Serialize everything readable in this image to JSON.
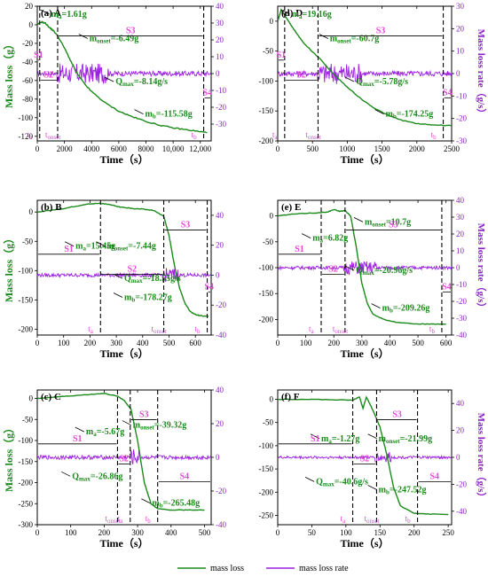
{
  "chart_data": [
    {
      "panel": "(a) A",
      "type": "line",
      "xlabel": "Time（s）",
      "ylabel": "Mass loss（g）",
      "y2label": "Mass loss rate（g/s）",
      "xlim": [
        0,
        12800
      ],
      "xticks": [
        0,
        2000,
        4000,
        6000,
        8000,
        10000,
        12000
      ],
      "xticklabels": [
        "0",
        "2000",
        "4000",
        "6000",
        "8000",
        "10,000",
        "12,000"
      ],
      "ylim": [
        -125,
        20
      ],
      "yticks": [
        -120,
        -100,
        -80,
        -60,
        -40,
        -20,
        0,
        20
      ],
      "y2lim": [
        -40,
        40
      ],
      "y2ticks": [
        -30,
        -20,
        -10,
        0,
        10,
        20,
        30,
        40
      ],
      "mass_loss": {
        "x": [
          0,
          300,
          600,
          900,
          1200,
          1500,
          2000,
          2500,
          3000,
          3500,
          4000,
          5000,
          6000,
          7000,
          8000,
          9000,
          10000,
          11000,
          12000,
          12500
        ],
        "y": [
          0,
          3,
          1.6,
          -3,
          -6.5,
          -12,
          -25,
          -40,
          -54,
          -64,
          -72,
          -84,
          -93,
          -99,
          -104,
          -108,
          -111,
          -113,
          -115,
          -116
        ]
      },
      "rate_baseline": 0,
      "rate_noise": 1.5,
      "stage_lines": [
        180,
        1500,
        12250
      ],
      "annotations": {
        "ma": "ma=1.61g",
        "monset": "monset=-6.49g",
        "qmax": "Qmax=-8.14g/s",
        "mb": "mb=-115.58g"
      },
      "stages": [
        "S1",
        "S2",
        "S3",
        "S4"
      ],
      "times": [
        "ta",
        "tonset",
        "tb"
      ]
    },
    {
      "panel": "(d) D",
      "type": "line",
      "xlabel": "Time（s）",
      "ylabel": "Mass loss（g）",
      "y2label": "Mass loss rate（g/s）",
      "xlim": [
        0,
        2500
      ],
      "xticks": [
        0,
        500,
        1000,
        1500,
        2000,
        2500
      ],
      "xticklabels": [
        "0",
        "500",
        "1000",
        "1500",
        "2000",
        "2500"
      ],
      "ylim": [
        -200,
        25
      ],
      "yticks": [
        -200,
        -150,
        -100,
        -50,
        0
      ],
      "y2lim": [
        -30,
        30
      ],
      "y2ticks": [
        -30,
        -20,
        -10,
        0,
        10,
        20,
        30
      ],
      "mass_loss": {
        "x": [
          0,
          50,
          100,
          200,
          300,
          400,
          600,
          800,
          1000,
          1200,
          1400,
          1600,
          1800,
          2000,
          2200,
          2400,
          2500
        ],
        "y": [
          0,
          19,
          10,
          -8,
          -25,
          -40,
          -62,
          -88,
          -110,
          -130,
          -146,
          -158,
          -166,
          -171,
          -173,
          -174,
          -174
        ]
      },
      "rate_baseline": 0,
      "rate_noise": 1.2,
      "stage_lines": [
        100,
        580,
        2380
      ],
      "annotations": {
        "ma": "ma=19.16g",
        "monset": "monset=-60.7g",
        "qmax": "Qmax=-5.78g/s",
        "mb": "mb=-174.25g"
      },
      "stages": [
        "S1",
        "S2",
        "S3",
        "S4"
      ],
      "times": [
        "ta",
        "tonset",
        "tb"
      ]
    },
    {
      "panel": "(b) B",
      "type": "line",
      "xlabel": "Time（s）",
      "ylabel": "Mass loss（g）",
      "y2label": "Mass loss rate（g/s）",
      "xlim": [
        0,
        660
      ],
      "xticks": [
        0,
        100,
        200,
        300,
        400,
        500,
        600
      ],
      "xticklabels": [
        "0",
        "100",
        "200",
        "300",
        "400",
        "500",
        "600"
      ],
      "ylim": [
        -210,
        20
      ],
      "yticks": [
        -200,
        -150,
        -100,
        -50,
        0
      ],
      "y2lim": [
        -40,
        50
      ],
      "y2ticks": [
        -40,
        -20,
        0,
        20,
        40
      ],
      "mass_loss": {
        "x": [
          0,
          50,
          100,
          150,
          200,
          240,
          280,
          320,
          360,
          400,
          440,
          480,
          500,
          520,
          540,
          560,
          580,
          600,
          620,
          650
        ],
        "y": [
          0,
          3,
          6,
          10,
          14,
          15,
          12,
          8,
          6,
          5,
          3,
          -7,
          -40,
          -90,
          -130,
          -155,
          -170,
          -175,
          -177,
          -178
        ]
      },
      "rate_baseline": 0,
      "rate_noise": 1.2,
      "stage_lines": [
        240,
        480,
        645
      ],
      "annotations": {
        "ma": "ma=15.45g",
        "monset": "monset=-7.44g",
        "qmax": "Qmax=-18.55g/s",
        "mb": "mb=-178.27g"
      },
      "stages": [
        "S1",
        "S2",
        "S3",
        "S4"
      ],
      "times": [
        "ta",
        "tonset",
        "tb"
      ]
    },
    {
      "panel": "(e) E",
      "type": "line",
      "xlabel": "Time（s）",
      "ylabel": "Mass loss（g）",
      "y2label": "Mass loss rate（g/s）",
      "xlim": [
        0,
        620
      ],
      "xticks": [
        0,
        100,
        200,
        300,
        400,
        500,
        600
      ],
      "xticklabels": [
        "0",
        "100",
        "200",
        "300",
        "400",
        "500",
        "600"
      ],
      "ylim": [
        -230,
        30
      ],
      "yticks": [
        -200,
        -150,
        -100,
        -50,
        0
      ],
      "y2lim": [
        -40,
        40
      ],
      "y2ticks": [
        -40,
        -30,
        -20,
        -10,
        0,
        10,
        20,
        30,
        40
      ],
      "mass_loss": {
        "x": [
          0,
          50,
          100,
          150,
          180,
          200,
          220,
          240,
          260,
          280,
          300,
          320,
          340,
          380,
          420,
          480,
          540,
          600
        ],
        "y": [
          0,
          3,
          5,
          6,
          8,
          12,
          9,
          10,
          0,
          -60,
          -130,
          -170,
          -190,
          -200,
          -205,
          -208,
          -209,
          -209
        ]
      },
      "rate_baseline": 0,
      "rate_noise": 1.0,
      "stage_lines": [
        155,
        240,
        585
      ],
      "annotations": {
        "ma": "ma=6.82g",
        "monset": "monset=10.7g",
        "qmax": "Qmax=-20.96g/s",
        "mb": "mb=-209.26g"
      },
      "stages": [
        "S1",
        "S2",
        "S3",
        "S4"
      ],
      "times": [
        "ta",
        "tonset",
        "tb"
      ]
    },
    {
      "panel": "(c) C",
      "type": "line",
      "xlabel": "Time（s）",
      "ylabel": "Mass loss（g）",
      "y2label": "Mass loss rate（g/s）",
      "xlim": [
        0,
        520
      ],
      "xticks": [
        0,
        100,
        200,
        300,
        400,
        500
      ],
      "xticklabels": [
        "0",
        "100",
        "200",
        "300",
        "400",
        "500"
      ],
      "ylim": [
        -300,
        20
      ],
      "yticks": [
        -300,
        -250,
        -200,
        -150,
        -100,
        -50,
        0
      ],
      "y2lim": [
        -40,
        40
      ],
      "y2ticks": [
        -40,
        -20,
        0,
        20,
        40
      ],
      "mass_loss": {
        "x": [
          0,
          50,
          100,
          150,
          200,
          240,
          260,
          280,
          300,
          320,
          340,
          360,
          400,
          450,
          500
        ],
        "y": [
          0,
          3,
          6,
          9,
          12,
          5,
          -5,
          -25,
          -100,
          -200,
          -250,
          -262,
          -265,
          -265,
          -265
        ]
      },
      "rate_baseline": 0,
      "rate_noise": 1.2,
      "stage_lines": [
        240,
        278,
        360
      ],
      "annotations": {
        "ma": "ma=-5.67g",
        "monset": "monset=-39.32g",
        "qmax": "Qmax=-26.86g",
        "mb": "mb=-265.48g"
      },
      "stages": [
        "S1",
        "S2",
        "S3",
        "S4"
      ],
      "times": [
        "tonset",
        "ta",
        "tb"
      ]
    },
    {
      "panel": "(f) F",
      "type": "line",
      "xlabel": "Time（s）",
      "ylabel": "Mass loss（g）",
      "y2label": "Mass loss rate（g/s）",
      "xlim": [
        0,
        255
      ],
      "xticks": [
        0,
        50,
        100,
        150,
        200,
        250
      ],
      "xticklabels": [
        "0",
        "50",
        "100",
        "150",
        "200",
        "250"
      ],
      "ylim": [
        -270,
        20
      ],
      "yticks": [
        -250,
        -200,
        -150,
        -100,
        -50,
        0
      ],
      "y2lim": [
        -50,
        50
      ],
      "y2ticks": [
        -40,
        -20,
        0,
        20,
        40
      ],
      "mass_loss": {
        "x": [
          0,
          40,
          80,
          110,
          120,
          125,
          130,
          135,
          140,
          150,
          160,
          170,
          180,
          200,
          220,
          250
        ],
        "y": [
          0,
          0,
          -1,
          -2,
          5,
          -20,
          5,
          -10,
          -25,
          -60,
          -120,
          -190,
          -230,
          -245,
          -247,
          -248
        ]
      },
      "rate_baseline": 0,
      "rate_noise": 1.0,
      "stage_lines": [
        110,
        145,
        205
      ],
      "annotations": {
        "ma": "ma=-1.27g",
        "monset": "monset=-21.99g",
        "qmax": "Qmax=-40.6g/s",
        "mb": "mb=-247.52g"
      },
      "stages": [
        "S1",
        "S2",
        "S3",
        "S4"
      ],
      "times": [
        "ta",
        "tonset",
        "tb"
      ]
    }
  ],
  "legend": {
    "mass_loss": "mass loss",
    "mass_loss_rate": "mass loss rate"
  },
  "colors": {
    "mass_loss": "#1a8a1a",
    "mass_loss_rate": "#9b1fe0",
    "stage": "#e04ad6"
  }
}
